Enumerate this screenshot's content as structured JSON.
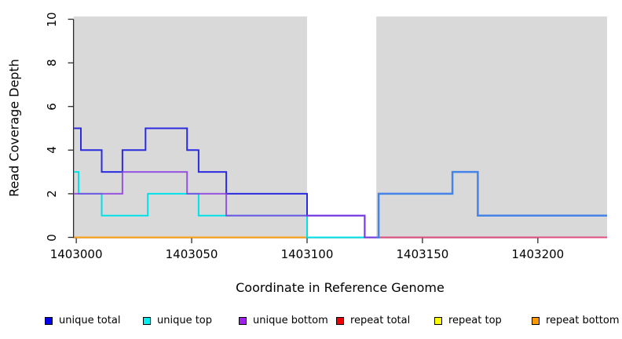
{
  "chart_data": {
    "type": "step-line",
    "title": "",
    "xlabel": "Coordinate in Reference Genome",
    "ylabel": "Read Coverage Depth",
    "xlim": [
      1402998.8,
      1403230
    ],
    "ylim": [
      0,
      10
    ],
    "grid": false,
    "x_tick_values": [
      1403000,
      1403050,
      1403100,
      1403150,
      1403200
    ],
    "x_tick_labels": [
      "1403000",
      "1403050",
      "1403100",
      "1403150",
      "1403200"
    ],
    "y_tick_values": [
      0,
      2,
      4,
      6,
      8,
      10
    ],
    "y_tick_labels": [
      "0",
      "2",
      "4",
      "6",
      "8",
      "10"
    ],
    "shaded_regions": [
      {
        "x1": 1402998.8,
        "x2": 1403100,
        "color": "#d9d9d9"
      },
      {
        "x1": 1403130,
        "x2": 1403230,
        "color": "#d9d9d9"
      }
    ],
    "series": [
      {
        "name": "repeat bottom",
        "color": "#FFA014",
        "width": 2,
        "points": [
          [
            1402999,
            0
          ],
          [
            1403100,
            0
          ]
        ]
      },
      {
        "name": "zero line in unshaded gap (repeat/unique overlap)",
        "color": "#69BB6E",
        "width": 2,
        "points": [
          [
            1403100,
            0
          ],
          [
            1403128,
            0
          ]
        ]
      },
      {
        "name": "repeat zero line right region",
        "color": "#DD5080",
        "width": 2,
        "points": [
          [
            1403130,
            0
          ],
          [
            1403230,
            0
          ]
        ]
      },
      {
        "name": "unique top",
        "color": "#00E1E8",
        "width": 2,
        "points": [
          [
            1402999,
            3
          ],
          [
            1403001,
            2
          ],
          [
            1403011,
            1
          ],
          [
            1403031,
            2
          ],
          [
            1403053,
            1
          ],
          [
            1403100,
            0
          ],
          [
            1403128,
            0
          ]
        ]
      },
      {
        "name": "unique total",
        "color": "#2B2BE0",
        "width": 2,
        "points": [
          [
            1402999,
            5
          ],
          [
            1403002,
            4
          ],
          [
            1403011,
            3
          ],
          [
            1403020,
            4
          ],
          [
            1403030,
            5
          ],
          [
            1403048,
            4
          ],
          [
            1403053,
            3
          ],
          [
            1403065,
            2
          ],
          [
            1403100,
            1
          ],
          [
            1403125,
            0
          ],
          [
            1403130,
            0
          ]
        ]
      },
      {
        "name": "unique bottom",
        "color": "#8A3CE0",
        "width": 2,
        "opacity": 0.85,
        "points": [
          [
            1402999,
            2
          ],
          [
            1403020,
            3
          ],
          [
            1403048,
            2
          ],
          [
            1403065,
            1
          ],
          [
            1403125,
            0
          ],
          [
            1403130,
            0
          ]
        ]
      },
      {
        "name": "unique total right region",
        "color": "#4484E8",
        "width": 2.5,
        "points": [
          [
            1403130,
            0
          ],
          [
            1403131,
            2
          ],
          [
            1403163,
            3
          ],
          [
            1403174,
            1
          ],
          [
            1403230,
            1
          ]
        ]
      }
    ],
    "legend": {
      "position": "bottom",
      "items": [
        {
          "label": "unique total",
          "color": "#0000EE"
        },
        {
          "label": "unique top",
          "color": "#00EEEE"
        },
        {
          "label": "unique bottom",
          "color": "#A020F0"
        },
        {
          "label": "repeat total",
          "color": "#EE0000"
        },
        {
          "label": "repeat top",
          "color": "#FFFF00"
        },
        {
          "label": "repeat bottom",
          "color": "#FF9900"
        }
      ]
    },
    "axis_color": "#2b2b2b"
  }
}
